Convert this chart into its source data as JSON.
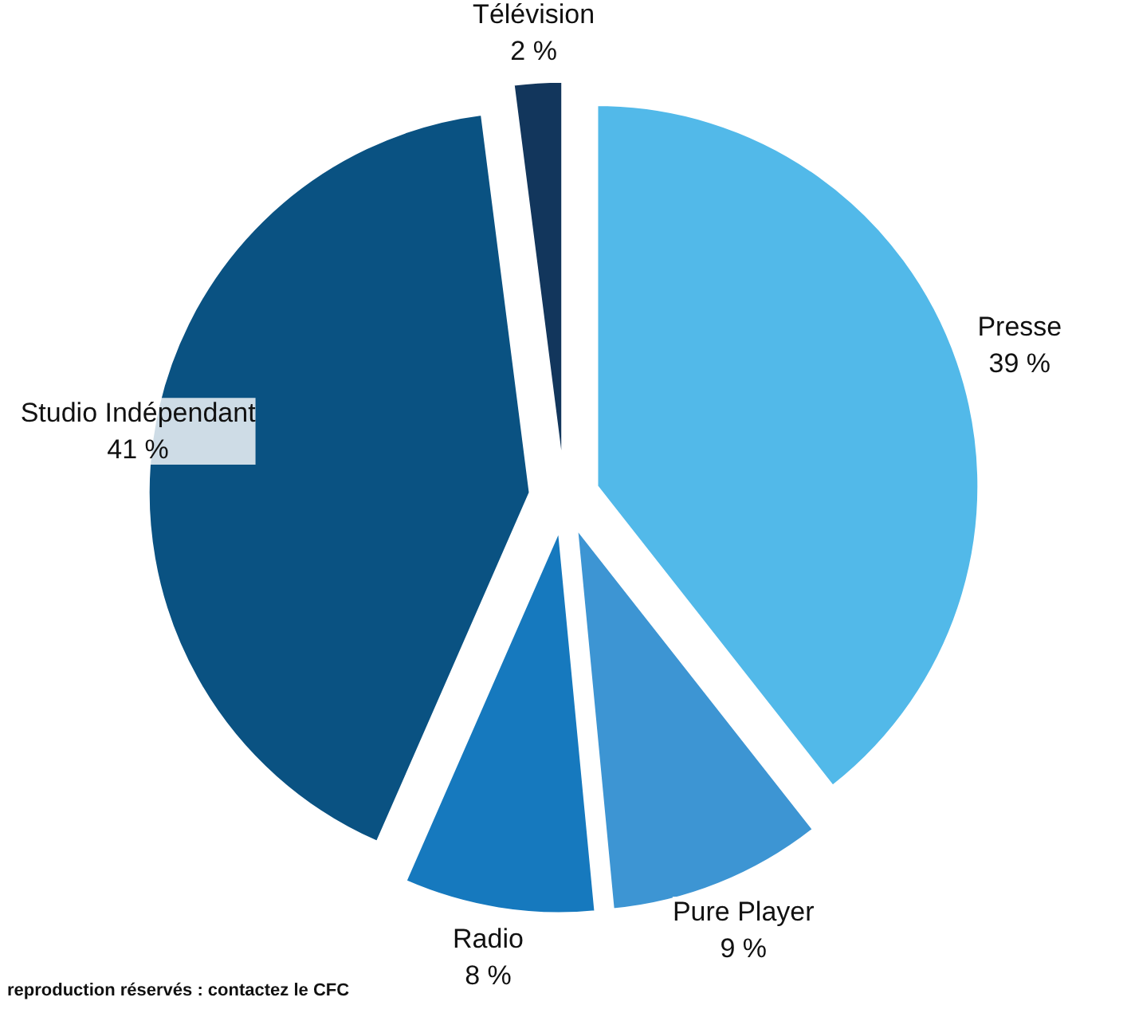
{
  "chart_data": {
    "type": "pie",
    "categories": [
      "Presse",
      "Pure Player",
      "Radio",
      "Studio Indépendant",
      "Télévision"
    ],
    "values": [
      39,
      9,
      8,
      41,
      2
    ],
    "colors": [
      "#52b9e9",
      "#3d95d3",
      "#1679be",
      "#0a5282",
      "#12365c"
    ],
    "value_labels": [
      "39 %",
      "9 %",
      "8 %",
      "41 %",
      "2 %"
    ],
    "annotations": [
      "reproduction réservés : contactez le CFC"
    ]
  }
}
